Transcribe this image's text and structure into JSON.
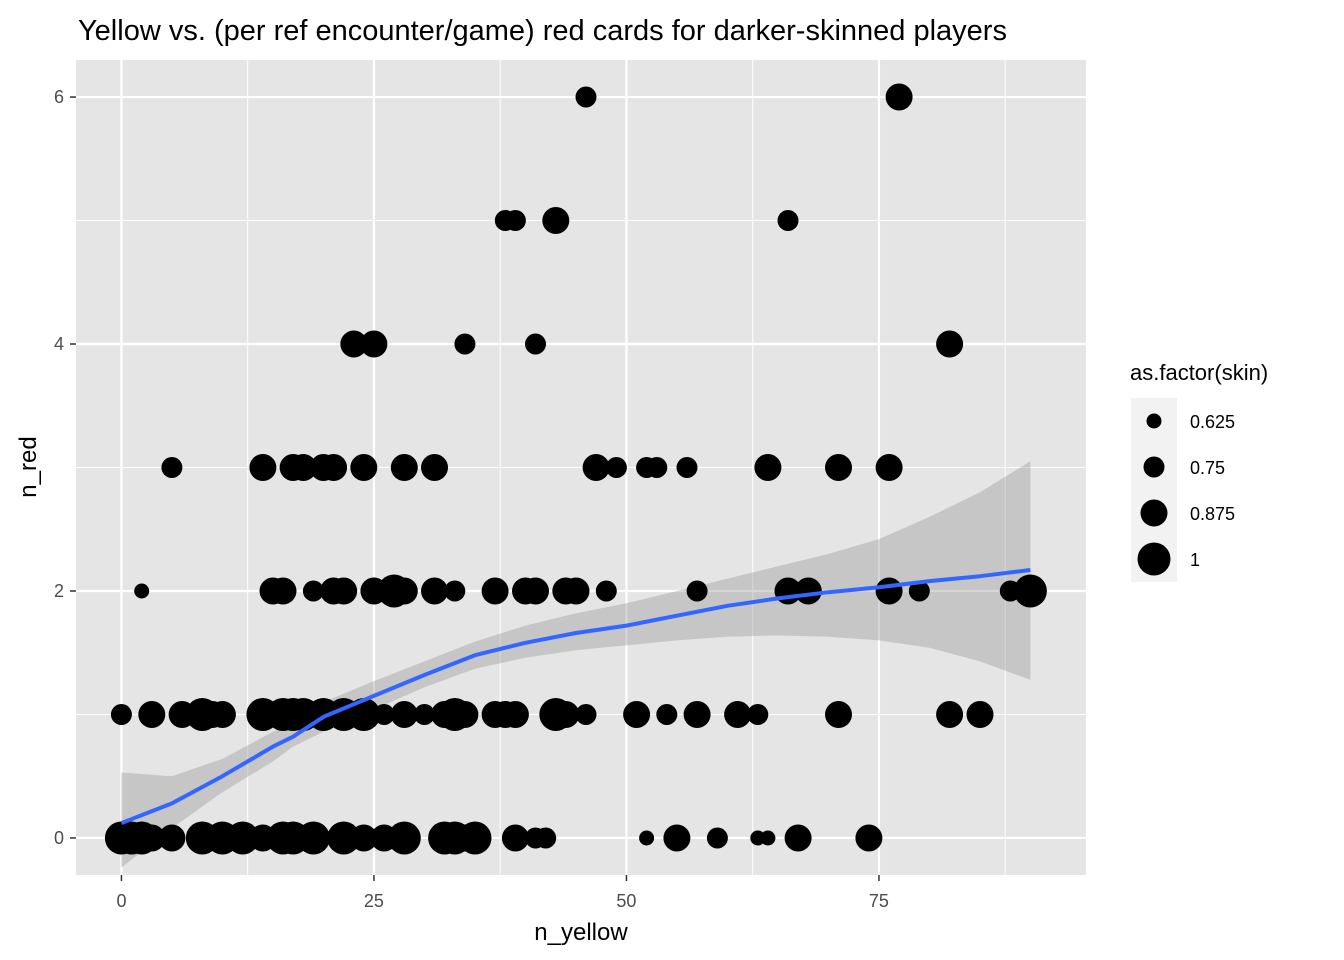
{
  "chart_data": {
    "type": "scatter",
    "title": "Yellow vs. (per ref encounter/game) red cards for darker-skinned players",
    "xlabel": "n_yellow",
    "ylabel": "n_red",
    "xlim": [
      -4.5,
      95.5
    ],
    "ylim": [
      -0.3,
      6.3
    ],
    "x_ticks": [
      0,
      25,
      50,
      75
    ],
    "x_tick_labels": [
      "0",
      "25",
      "50",
      "75"
    ],
    "y_ticks": [
      0,
      2,
      4,
      6
    ],
    "y_tick_labels": [
      "0",
      "2",
      "4",
      "6"
    ],
    "grid": true,
    "legend": {
      "title": "as.factor(skin)",
      "placement": "right",
      "entries": [
        {
          "label": "0.625",
          "value": 0.625
        },
        {
          "label": "0.75",
          "value": 0.75
        },
        {
          "label": "0.875",
          "value": 0.875
        },
        {
          "label": "1",
          "value": 1
        }
      ]
    },
    "colors": {
      "panel": "#e5e5e5",
      "grid": "#ffffff",
      "points": "#000000",
      "smooth_line": "#3366ff",
      "confidence_band": "#999999"
    },
    "points": [
      {
        "x": 0,
        "y": 0,
        "skin": 1
      },
      {
        "x": 1,
        "y": 0,
        "skin": 1
      },
      {
        "x": 2,
        "y": 0,
        "skin": 1
      },
      {
        "x": 3,
        "y": 0,
        "skin": 0.875
      },
      {
        "x": 5,
        "y": 0,
        "skin": 0.875
      },
      {
        "x": 8,
        "y": 0,
        "skin": 1
      },
      {
        "x": 10,
        "y": 0,
        "skin": 1
      },
      {
        "x": 12,
        "y": 0,
        "skin": 1
      },
      {
        "x": 14,
        "y": 0,
        "skin": 0.875
      },
      {
        "x": 16,
        "y": 0,
        "skin": 1
      },
      {
        "x": 17,
        "y": 0,
        "skin": 1
      },
      {
        "x": 19,
        "y": 0,
        "skin": 1
      },
      {
        "x": 22,
        "y": 0,
        "skin": 1
      },
      {
        "x": 24,
        "y": 0,
        "skin": 0.875
      },
      {
        "x": 26,
        "y": 0,
        "skin": 0.875
      },
      {
        "x": 28,
        "y": 0,
        "skin": 1
      },
      {
        "x": 32,
        "y": 0,
        "skin": 1
      },
      {
        "x": 33,
        "y": 0,
        "skin": 1
      },
      {
        "x": 34,
        "y": 0,
        "skin": 0.875
      },
      {
        "x": 35,
        "y": 0,
        "skin": 1
      },
      {
        "x": 39,
        "y": 0,
        "skin": 0.875
      },
      {
        "x": 41,
        "y": 0,
        "skin": 0.75
      },
      {
        "x": 42,
        "y": 0,
        "skin": 0.75
      },
      {
        "x": 52,
        "y": 0,
        "skin": 0.625
      },
      {
        "x": 55,
        "y": 0,
        "skin": 0.875
      },
      {
        "x": 59,
        "y": 0,
        "skin": 0.75
      },
      {
        "x": 63,
        "y": 0,
        "skin": 0.625
      },
      {
        "x": 64,
        "y": 0,
        "skin": 0.625
      },
      {
        "x": 67,
        "y": 0,
        "skin": 0.875
      },
      {
        "x": 74,
        "y": 0,
        "skin": 0.875
      },
      {
        "x": 0,
        "y": 1,
        "skin": 0.75
      },
      {
        "x": 3,
        "y": 1,
        "skin": 0.875
      },
      {
        "x": 6,
        "y": 1,
        "skin": 0.875
      },
      {
        "x": 8,
        "y": 1,
        "skin": 1
      },
      {
        "x": 9,
        "y": 1,
        "skin": 0.875
      },
      {
        "x": 10,
        "y": 1,
        "skin": 0.875
      },
      {
        "x": 14,
        "y": 1,
        "skin": 1
      },
      {
        "x": 16,
        "y": 1,
        "skin": 1
      },
      {
        "x": 17,
        "y": 1,
        "skin": 1
      },
      {
        "x": 18,
        "y": 1,
        "skin": 1
      },
      {
        "x": 20,
        "y": 1,
        "skin": 1
      },
      {
        "x": 22,
        "y": 1,
        "skin": 1
      },
      {
        "x": 24,
        "y": 1,
        "skin": 1
      },
      {
        "x": 26,
        "y": 1,
        "skin": 0.75
      },
      {
        "x": 28,
        "y": 1,
        "skin": 0.875
      },
      {
        "x": 30,
        "y": 1,
        "skin": 0.75
      },
      {
        "x": 32,
        "y": 1,
        "skin": 0.875
      },
      {
        "x": 33,
        "y": 1,
        "skin": 1
      },
      {
        "x": 34,
        "y": 1,
        "skin": 0.875
      },
      {
        "x": 37,
        "y": 1,
        "skin": 0.875
      },
      {
        "x": 38,
        "y": 1,
        "skin": 0.875
      },
      {
        "x": 39,
        "y": 1,
        "skin": 0.875
      },
      {
        "x": 43,
        "y": 1,
        "skin": 1
      },
      {
        "x": 44,
        "y": 1,
        "skin": 0.875
      },
      {
        "x": 46,
        "y": 1,
        "skin": 0.75
      },
      {
        "x": 51,
        "y": 1,
        "skin": 0.875
      },
      {
        "x": 54,
        "y": 1,
        "skin": 0.75
      },
      {
        "x": 57,
        "y": 1,
        "skin": 0.875
      },
      {
        "x": 61,
        "y": 1,
        "skin": 0.875
      },
      {
        "x": 63,
        "y": 1,
        "skin": 0.75
      },
      {
        "x": 71,
        "y": 1,
        "skin": 0.875
      },
      {
        "x": 82,
        "y": 1,
        "skin": 0.875
      },
      {
        "x": 85,
        "y": 1,
        "skin": 0.875
      },
      {
        "x": 2,
        "y": 2,
        "skin": 0.625
      },
      {
        "x": 15,
        "y": 2,
        "skin": 0.875
      },
      {
        "x": 16,
        "y": 2,
        "skin": 0.875
      },
      {
        "x": 19,
        "y": 2,
        "skin": 0.75
      },
      {
        "x": 21,
        "y": 2,
        "skin": 0.875
      },
      {
        "x": 22,
        "y": 2,
        "skin": 0.875
      },
      {
        "x": 25,
        "y": 2,
        "skin": 0.875
      },
      {
        "x": 27,
        "y": 2,
        "skin": 1
      },
      {
        "x": 28,
        "y": 2,
        "skin": 0.875
      },
      {
        "x": 31,
        "y": 2,
        "skin": 0.875
      },
      {
        "x": 33,
        "y": 2,
        "skin": 0.75
      },
      {
        "x": 37,
        "y": 2,
        "skin": 0.875
      },
      {
        "x": 40,
        "y": 2,
        "skin": 0.875
      },
      {
        "x": 41,
        "y": 2,
        "skin": 0.875
      },
      {
        "x": 44,
        "y": 2,
        "skin": 0.875
      },
      {
        "x": 45,
        "y": 2,
        "skin": 0.875
      },
      {
        "x": 48,
        "y": 2,
        "skin": 0.75
      },
      {
        "x": 57,
        "y": 2,
        "skin": 0.75
      },
      {
        "x": 66,
        "y": 2,
        "skin": 0.875
      },
      {
        "x": 68,
        "y": 2,
        "skin": 0.875
      },
      {
        "x": 76,
        "y": 2,
        "skin": 0.875
      },
      {
        "x": 79,
        "y": 2,
        "skin": 0.75
      },
      {
        "x": 88,
        "y": 2,
        "skin": 0.75
      },
      {
        "x": 90,
        "y": 2,
        "skin": 1
      },
      {
        "x": 5,
        "y": 3,
        "skin": 0.75
      },
      {
        "x": 14,
        "y": 3,
        "skin": 0.875
      },
      {
        "x": 17,
        "y": 3,
        "skin": 0.875
      },
      {
        "x": 18,
        "y": 3,
        "skin": 0.875
      },
      {
        "x": 20,
        "y": 3,
        "skin": 0.875
      },
      {
        "x": 21,
        "y": 3,
        "skin": 0.875
      },
      {
        "x": 24,
        "y": 3,
        "skin": 0.875
      },
      {
        "x": 28,
        "y": 3,
        "skin": 0.875
      },
      {
        "x": 31,
        "y": 3,
        "skin": 0.875
      },
      {
        "x": 47,
        "y": 3,
        "skin": 0.875
      },
      {
        "x": 49,
        "y": 3,
        "skin": 0.75
      },
      {
        "x": 52,
        "y": 3,
        "skin": 0.75
      },
      {
        "x": 53,
        "y": 3,
        "skin": 0.75
      },
      {
        "x": 56,
        "y": 3,
        "skin": 0.75
      },
      {
        "x": 64,
        "y": 3,
        "skin": 0.875
      },
      {
        "x": 71,
        "y": 3,
        "skin": 0.875
      },
      {
        "x": 76,
        "y": 3,
        "skin": 0.875
      },
      {
        "x": 23,
        "y": 4,
        "skin": 0.875
      },
      {
        "x": 25,
        "y": 4,
        "skin": 0.875
      },
      {
        "x": 34,
        "y": 4,
        "skin": 0.75
      },
      {
        "x": 41,
        "y": 4,
        "skin": 0.75
      },
      {
        "x": 82,
        "y": 4,
        "skin": 0.875
      },
      {
        "x": 38,
        "y": 5,
        "skin": 0.75
      },
      {
        "x": 39,
        "y": 5,
        "skin": 0.75
      },
      {
        "x": 43,
        "y": 5,
        "skin": 0.875
      },
      {
        "x": 66,
        "y": 5,
        "skin": 0.75
      },
      {
        "x": 46,
        "y": 6,
        "skin": 0.75
      },
      {
        "x": 77,
        "y": 6,
        "skin": 0.875
      }
    ],
    "smooth": {
      "method": "loess",
      "x": [
        0,
        5,
        10,
        15,
        17,
        20,
        25,
        30,
        35,
        40,
        45,
        50,
        55,
        60,
        65,
        70,
        75,
        80,
        85,
        90
      ],
      "y": [
        0.12,
        0.28,
        0.5,
        0.74,
        0.82,
        0.98,
        1.15,
        1.32,
        1.48,
        1.58,
        1.66,
        1.72,
        1.8,
        1.88,
        1.94,
        1.99,
        2.03,
        2.08,
        2.12,
        2.17
      ],
      "lower": [
        -0.24,
        0.08,
        0.37,
        0.62,
        0.74,
        0.86,
        1.04,
        1.22,
        1.37,
        1.46,
        1.52,
        1.56,
        1.6,
        1.63,
        1.64,
        1.63,
        1.6,
        1.54,
        1.43,
        1.28
      ],
      "upper": [
        0.53,
        0.5,
        0.64,
        0.86,
        0.92,
        1.1,
        1.27,
        1.43,
        1.59,
        1.72,
        1.82,
        1.9,
        2.0,
        2.1,
        2.2,
        2.3,
        2.42,
        2.6,
        2.8,
        3.05
      ]
    }
  }
}
